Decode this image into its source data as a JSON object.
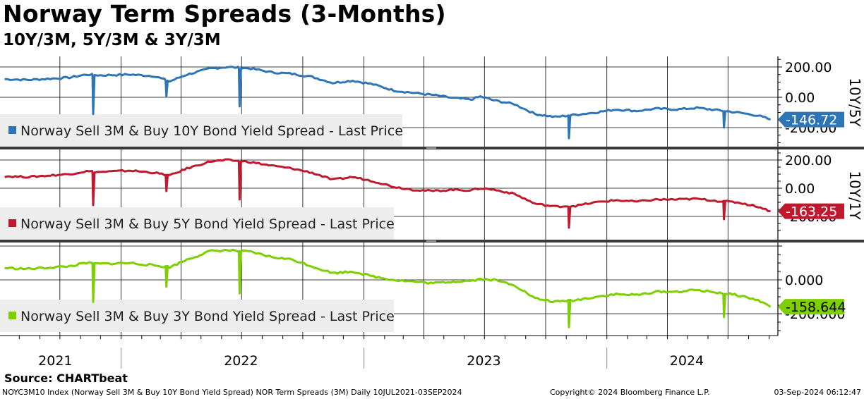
{
  "title": "Norway Term Spreads (3-Months)",
  "subtitle": "10Y/3M, 5Y/3M & 3Y/3M",
  "source": "Source: CHARTbeat",
  "footer": {
    "left": "NOYC3M10 Index (Norway Sell 3M & Buy 10Y Bond Yield Spread) NOR Term Spreads (3M)  Daily 10JUL2021-03SEP2024",
    "middle": "Copyright© 2024 Bloomberg Finance L.P.",
    "right": "03-Sep-2024 06:12:47"
  },
  "colors": {
    "blue": "#2e75b6",
    "red": "#c0182f",
    "green": "#7dcf00",
    "background": "#ffffff"
  },
  "chart_data": {
    "type": "line",
    "x_axis": {
      "labels": [
        "2021",
        "2022",
        "2023",
        "2024"
      ],
      "range": [
        "2021-07-10",
        "2024-09-03"
      ]
    },
    "panels": [
      {
        "series_name": "Norway Sell 3M & Buy 10Y Bond Yield Spread - Last Price",
        "color": "#2e75b6",
        "side_label": "10Y/5Y",
        "last_value_label": "-146.72",
        "y_tick_labels": [
          "200.00",
          "0.00",
          "-200.00"
        ],
        "ylim": [
          -300,
          260
        ],
        "dates": [
          "2021-07-10",
          "2021-08-15",
          "2021-10-15",
          "2021-11-10",
          "2021-12-01",
          "2022-01-15",
          "2022-02-20",
          "2022-03-15",
          "2022-04-10",
          "2022-05-15",
          "2022-06-10",
          "2022-07-15",
          "2022-08-15",
          "2022-09-15",
          "2022-10-15",
          "2022-11-15",
          "2022-12-15",
          "2023-01-15",
          "2023-02-15",
          "2023-03-15",
          "2023-04-15",
          "2023-05-15",
          "2023-06-10",
          "2023-06-25",
          "2023-07-15",
          "2023-08-15",
          "2023-09-15",
          "2023-10-15",
          "2023-11-15",
          "2023-12-15",
          "2024-01-15",
          "2024-02-15",
          "2024-03-15",
          "2024-04-15",
          "2024-05-15",
          "2024-06-15",
          "2024-07-15",
          "2024-08-15",
          "2024-09-03"
        ],
        "values": [
          120,
          115,
          130,
          150,
          145,
          150,
          140,
          105,
          150,
          190,
          200,
          190,
          165,
          155,
          135,
          95,
          110,
          85,
          45,
          30,
          15,
          -5,
          -15,
          5,
          -20,
          -45,
          -110,
          -130,
          -115,
          -100,
          -80,
          -90,
          -75,
          -80,
          -70,
          -85,
          -100,
          -120,
          -147
        ],
        "dips": [
          {
            "date": "2021-11-20",
            "value": -110
          },
          {
            "date": "2022-03-10",
            "value": 5
          },
          {
            "date": "2022-06-28",
            "value": -60
          },
          {
            "date": "2023-11-05",
            "value": -270
          },
          {
            "date": "2024-06-25",
            "value": -200
          }
        ]
      },
      {
        "series_name": "Norway Sell 3M & Buy 5Y Bond Yield Spread - Last Price",
        "color": "#c0182f",
        "side_label": "10Y/1Y",
        "last_value_label": "-163.25",
        "y_tick_labels": [
          "200.00",
          "0.00",
          "-200.00"
        ],
        "ylim": [
          -300,
          230
        ],
        "dates": [
          "2021-07-10",
          "2021-08-15",
          "2021-10-15",
          "2021-11-10",
          "2021-12-01",
          "2022-01-15",
          "2022-02-20",
          "2022-03-15",
          "2022-04-10",
          "2022-05-15",
          "2022-06-10",
          "2022-07-15",
          "2022-08-15",
          "2022-09-15",
          "2022-10-15",
          "2022-11-15",
          "2022-12-15",
          "2023-01-15",
          "2023-02-15",
          "2023-03-15",
          "2023-04-15",
          "2023-05-15",
          "2023-06-10",
          "2023-06-25",
          "2023-07-15",
          "2023-08-15",
          "2023-09-15",
          "2023-10-15",
          "2023-11-15",
          "2023-12-15",
          "2024-01-15",
          "2024-02-15",
          "2024-03-15",
          "2024-04-15",
          "2024-05-15",
          "2024-06-15",
          "2024-07-15",
          "2024-08-15",
          "2024-09-03"
        ],
        "values": [
          85,
          80,
          100,
          120,
          115,
          125,
          110,
          90,
          140,
          190,
          200,
          185,
          160,
          140,
          110,
          60,
          80,
          50,
          10,
          -10,
          -20,
          -10,
          -15,
          0,
          -10,
          -40,
          -110,
          -130,
          -125,
          -100,
          -85,
          -95,
          -80,
          -80,
          -75,
          -90,
          -100,
          -130,
          -163
        ],
        "dips": [
          {
            "date": "2021-11-20",
            "value": -120
          },
          {
            "date": "2022-03-10",
            "value": -20
          },
          {
            "date": "2022-06-28",
            "value": -80
          },
          {
            "date": "2023-11-05",
            "value": -280
          },
          {
            "date": "2024-06-25",
            "value": -220
          }
        ]
      },
      {
        "series_name": "Norway Sell 3M & Buy 3Y Bond Yield Spread - Last Price",
        "color": "#7dcf00",
        "side_label": "",
        "last_value_label": "-158.644",
        "y_tick_labels": [
          "0.000",
          "-200.000"
        ],
        "ylim": [
          -300,
          190
        ],
        "dates": [
          "2021-07-10",
          "2021-08-15",
          "2021-10-15",
          "2021-11-10",
          "2021-12-01",
          "2022-01-15",
          "2022-02-20",
          "2022-03-15",
          "2022-04-10",
          "2022-05-15",
          "2022-06-10",
          "2022-07-15",
          "2022-08-15",
          "2022-09-15",
          "2022-10-15",
          "2022-11-15",
          "2022-12-15",
          "2023-01-15",
          "2023-02-15",
          "2023-03-15",
          "2023-04-15",
          "2023-05-15",
          "2023-06-10",
          "2023-06-25",
          "2023-07-15",
          "2023-08-15",
          "2023-09-15",
          "2023-10-15",
          "2023-11-15",
          "2023-12-15",
          "2024-01-15",
          "2024-02-15",
          "2024-03-15",
          "2024-04-15",
          "2024-05-15",
          "2024-06-15",
          "2024-07-15",
          "2024-08-15",
          "2024-09-03"
        ],
        "values": [
          70,
          65,
          80,
          100,
          95,
          100,
          85,
          75,
          120,
          170,
          175,
          165,
          135,
          120,
          80,
          40,
          50,
          20,
          0,
          -10,
          -20,
          -10,
          -5,
          5,
          0,
          -30,
          -110,
          -130,
          -120,
          -100,
          -85,
          -90,
          -70,
          -70,
          -60,
          -75,
          -90,
          -120,
          -159
        ],
        "dips": [
          {
            "date": "2021-11-20",
            "value": -130
          },
          {
            "date": "2022-03-10",
            "value": -40
          },
          {
            "date": "2022-06-28",
            "value": -80
          },
          {
            "date": "2023-11-05",
            "value": -280
          },
          {
            "date": "2024-06-25",
            "value": -220
          }
        ]
      }
    ]
  }
}
